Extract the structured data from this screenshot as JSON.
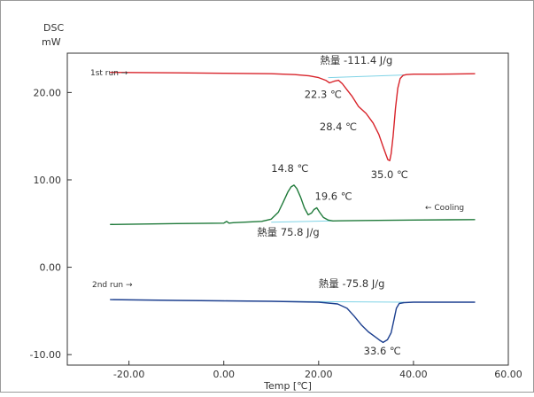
{
  "chart_data": {
    "type": "line",
    "xlabel": "Temp [℃]",
    "ylabel_line1": "DSC",
    "ylabel_line2": "mW",
    "xlim": [
      -33,
      60
    ],
    "ylim": [
      -11.2,
      24.5
    ],
    "x_ticks": [
      -20,
      0,
      20,
      40,
      60
    ],
    "x_tick_labels": [
      "-20.00",
      "0.00",
      "20.00",
      "40.00",
      "60.00"
    ],
    "y_ticks": [
      -10,
      0,
      10,
      20
    ],
    "y_tick_labels": [
      "-10.00",
      "0.00",
      "10.00",
      "20.00"
    ],
    "grid": false,
    "series": [
      {
        "name": "1st run",
        "arrow_label": "1st run  →",
        "color": "#d8232a",
        "baseline": {
          "x": [
            22,
            38
          ],
          "y": [
            21.7,
            22.0
          ]
        },
        "x": [
          -24,
          -10,
          0,
          10,
          15,
          18,
          20,
          21.5,
          22.3,
          23.3,
          24.2,
          25,
          26,
          27,
          28.4,
          30,
          31.5,
          32.7,
          33.6,
          34.2,
          34.6,
          35.0,
          35.3,
          35.7,
          36.2,
          36.7,
          37.2,
          37.8,
          38.5,
          40,
          45,
          53
        ],
        "y": [
          22.3,
          22.25,
          22.2,
          22.15,
          22.05,
          21.9,
          21.7,
          21.4,
          21.1,
          21.3,
          21.4,
          21.0,
          20.3,
          19.6,
          18.4,
          17.6,
          16.5,
          15.2,
          13.8,
          12.9,
          12.3,
          12.2,
          13.0,
          15.0,
          18.2,
          20.5,
          21.6,
          21.95,
          22.05,
          22.1,
          22.1,
          22.15
        ]
      },
      {
        "name": "Cooling",
        "arrow_label": "←  Cooling",
        "color": "#1f7a3a",
        "baseline": {
          "x": [
            10,
            23
          ],
          "y": [
            5.15,
            5.3
          ]
        },
        "x": [
          -24,
          -10,
          0,
          0.6,
          1.1,
          2,
          8,
          10,
          11.5,
          12.5,
          13.5,
          14.2,
          14.8,
          15.4,
          16.2,
          17,
          17.8,
          18.5,
          19.0,
          19.6,
          20.2,
          21,
          22,
          23,
          30,
          40,
          53
        ],
        "y": [
          4.9,
          5.0,
          5.05,
          5.25,
          5.05,
          5.1,
          5.25,
          5.5,
          6.3,
          7.4,
          8.6,
          9.2,
          9.4,
          9.0,
          8.0,
          6.8,
          6.0,
          6.2,
          6.6,
          6.8,
          6.3,
          5.7,
          5.4,
          5.3,
          5.35,
          5.4,
          5.45
        ]
      },
      {
        "name": "2nd run",
        "arrow_label": "2nd run  →",
        "color": "#1c3f8f",
        "baseline": {
          "x": [
            10,
            38
          ],
          "y": [
            -3.9,
            -4.0
          ]
        },
        "x": [
          -24,
          -10,
          0,
          10,
          20,
          24,
          26,
          27.5,
          29,
          30.5,
          32,
          33,
          33.6,
          34.5,
          35.3,
          35.9,
          36.4,
          37,
          38,
          40,
          45,
          53
        ],
        "y": [
          -3.7,
          -3.8,
          -3.85,
          -3.9,
          -4.0,
          -4.2,
          -4.7,
          -5.6,
          -6.6,
          -7.4,
          -8.0,
          -8.4,
          -8.6,
          -8.3,
          -7.5,
          -6.0,
          -4.7,
          -4.15,
          -4.05,
          -4.0,
          -4.0,
          -4.0
        ]
      }
    ],
    "annotations": [
      {
        "text": "熱量    -111.4 J/g",
        "x": 20.3,
        "y": 23.3
      },
      {
        "text": "22.3 ℃",
        "x": 17.0,
        "y": 19.4
      },
      {
        "text": "28.4 ℃",
        "x": 20.2,
        "y": 15.7
      },
      {
        "text": "35.0 ℃",
        "x": 31.0,
        "y": 10.2
      },
      {
        "text": "14.8 ℃",
        "x": 10.0,
        "y": 10.9
      },
      {
        "text": "19.6 ℃",
        "x": 19.2,
        "y": 7.7
      },
      {
        "text": "熱量    75.8 J/g",
        "x": 7.0,
        "y": 3.6
      },
      {
        "text": "熱量    -75.8 J/g",
        "x": 20.0,
        "y": -2.3
      },
      {
        "text": "33.6 ℃",
        "x": 29.5,
        "y": -10.0
      }
    ]
  }
}
